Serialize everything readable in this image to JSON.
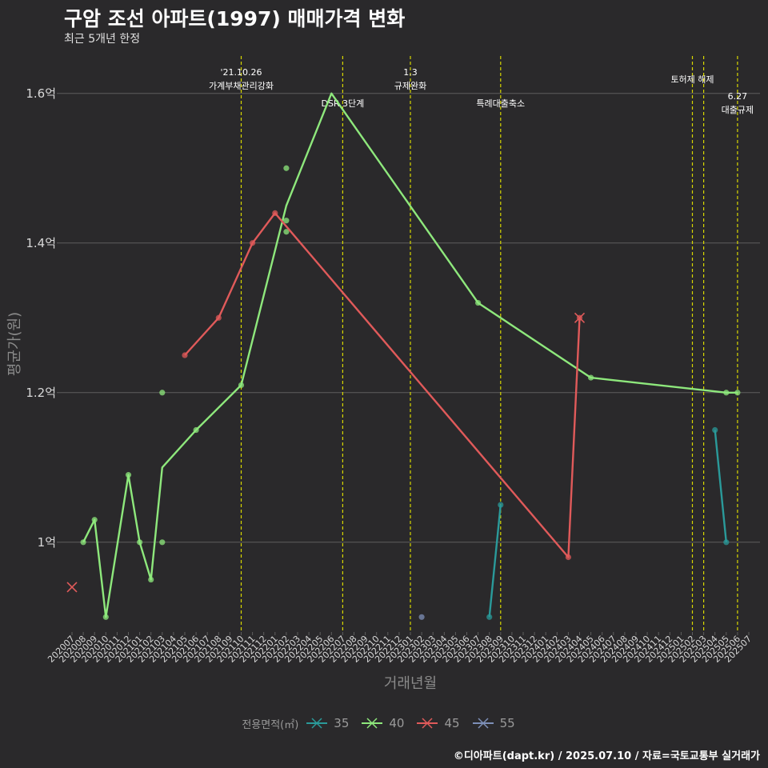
{
  "header": {
    "title": "구암 조선 아파트(1997) 매매가격 변화",
    "subtitle": "최근 5개년 한정"
  },
  "caption": "©디아파트(dapt.kr) / 2025.07.10 / 자료=국토교통부 실거래가",
  "chart_data": {
    "type": "line",
    "title": "구암 조선 아파트(1997) 매매가격 변화",
    "subtitle": "최근 5개년 한정",
    "xlabel": "거래년월",
    "ylabel": "평균가(원)",
    "categories": [
      "202007",
      "202008",
      "202009",
      "202010",
      "202011",
      "202012",
      "202101",
      "202102",
      "202103",
      "202104",
      "202105",
      "202106",
      "202107",
      "202108",
      "202109",
      "202110",
      "202111",
      "202112",
      "202201",
      "202202",
      "202203",
      "202204",
      "202205",
      "202206",
      "202207",
      "202208",
      "202209",
      "202210",
      "202211",
      "202212",
      "202301",
      "202302",
      "202303",
      "202304",
      "202305",
      "202306",
      "202307",
      "202308",
      "202309",
      "202310",
      "202311",
      "202312",
      "202401",
      "202402",
      "202403",
      "202404",
      "202405",
      "202406",
      "202407",
      "202408",
      "202409",
      "202410",
      "202411",
      "202412",
      "202501",
      "202502",
      "202503",
      "202504",
      "202505",
      "202506",
      "202507"
    ],
    "ylim": [
      0.88,
      1.65
    ],
    "yticks": [
      1.0,
      1.2,
      1.4,
      1.6
    ],
    "yticklabels": [
      "1억",
      "1.2억",
      "1.4억",
      "1.6억"
    ],
    "legend_title": "전용면적(㎡)",
    "series": [
      {
        "name": "35",
        "color": "#2a9a9a",
        "line": [
          [
            "202308",
            0.9
          ],
          [
            "202309",
            1.05
          ],
          null,
          [
            "202504",
            1.15
          ],
          [
            "202505",
            1.0
          ]
        ],
        "points": [
          [
            "202308",
            0.9
          ],
          [
            "202309",
            1.05
          ],
          [
            "202504",
            1.15
          ],
          [
            "202505",
            1.0
          ]
        ],
        "cross": []
      },
      {
        "name": "40",
        "color": "#8ee87c",
        "line": [
          [
            "202008",
            1.0
          ],
          [
            "202009",
            1.03
          ],
          [
            "202010",
            0.9
          ],
          [
            "202012",
            1.09
          ],
          [
            "202101",
            1.0
          ],
          [
            "202102",
            0.95
          ],
          [
            "202103",
            1.1
          ],
          [
            "202106",
            1.15
          ],
          [
            "202110",
            1.21
          ],
          [
            "202202",
            1.45
          ],
          [
            "202206",
            1.6
          ],
          [
            "202307",
            1.32
          ],
          [
            "202405",
            1.22
          ],
          [
            "202505",
            1.2
          ],
          [
            "202506",
            1.2
          ]
        ],
        "points": [
          [
            "202008",
            1.0
          ],
          [
            "202009",
            1.03
          ],
          [
            "202010",
            0.9
          ],
          [
            "202012",
            1.09
          ],
          [
            "202101",
            1.0
          ],
          [
            "202102",
            0.95
          ],
          [
            "202103",
            1.2
          ],
          [
            "202103",
            1.0
          ],
          [
            "202106",
            1.15
          ],
          [
            "202110",
            1.21
          ],
          [
            "202202",
            1.5
          ],
          [
            "202202",
            1.43
          ],
          [
            "202202",
            1.415
          ],
          [
            "202307",
            1.32
          ],
          [
            "202405",
            1.22
          ],
          [
            "202505",
            1.2
          ],
          [
            "202506",
            1.2
          ]
        ],
        "cross": []
      },
      {
        "name": "45",
        "color": "#e05a5a",
        "line": [
          [
            "202105",
            1.25
          ],
          [
            "202108",
            1.3
          ],
          [
            "202111",
            1.4
          ],
          [
            "202201",
            1.44
          ],
          [
            "202403",
            0.98
          ],
          [
            "202404",
            1.3
          ]
        ],
        "points": [
          [
            "202105",
            1.25
          ],
          [
            "202108",
            1.3
          ],
          [
            "202111",
            1.4
          ],
          [
            "202201",
            1.44
          ],
          [
            "202403",
            0.98
          ],
          [
            "202404",
            1.3
          ]
        ],
        "cross": [
          [
            "202404",
            1.3
          ]
        ]
      },
      {
        "name": "55",
        "color": "#7d8fb8",
        "line": [],
        "points": [
          [
            "202302",
            0.9
          ]
        ],
        "cross": []
      }
    ],
    "cross_points": [
      {
        "series": "45",
        "x": "202007",
        "y": 0.94
      }
    ],
    "events": [
      {
        "x": "202110",
        "lines": [
          "'21.10.26",
          "가계부채관리강화"
        ],
        "level": "top"
      },
      {
        "x": "202207",
        "lines": [
          "DSR 3단계"
        ],
        "level": "low"
      },
      {
        "x": "202301",
        "lines": [
          "1.3",
          "규제완화"
        ],
        "level": "top"
      },
      {
        "x": "202309",
        "lines": [
          "특례대출축소"
        ],
        "level": "low"
      },
      {
        "x": "202502",
        "lines": [
          "토허제 해제"
        ],
        "level": "mid"
      },
      {
        "x": "202503",
        "lines": [],
        "level": "mid"
      },
      {
        "x": "202506",
        "lines": [
          "6.27",
          "대출규제"
        ],
        "level": "bottom"
      }
    ]
  }
}
